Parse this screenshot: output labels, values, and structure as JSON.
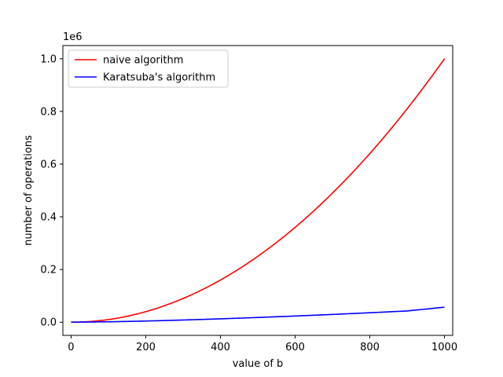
{
  "chart_data": {
    "type": "line",
    "xlabel": "value of b",
    "ylabel": "number of operations",
    "offset_text": "1e6",
    "xlim": [
      -22,
      1022
    ],
    "ylim": [
      -0.05,
      1.05
    ],
    "x_ticks": [
      0,
      200,
      400,
      600,
      800,
      1000
    ],
    "x_tick_labels": [
      "0",
      "200",
      "400",
      "600",
      "800",
      "1000"
    ],
    "y_ticks": [
      0.0,
      0.2,
      0.4,
      0.6,
      0.8,
      1.0
    ],
    "y_tick_labels": [
      "0.0",
      "0.2",
      "0.4",
      "0.6",
      "0.8",
      "1.0"
    ],
    "grid": false,
    "legend_position": "top-left",
    "x": [
      0,
      100,
      200,
      300,
      400,
      500,
      600,
      700,
      800,
      900,
      1000
    ],
    "series": [
      {
        "name": "naive algorithm",
        "color": "#ff0000",
        "values": [
          0.0,
          0.01,
          0.04,
          0.09,
          0.16,
          0.25,
          0.36,
          0.49,
          0.64,
          0.81,
          1.0
        ]
      },
      {
        "name": "Karatsuba's algorithm",
        "color": "#0000ff",
        "values": [
          0.0,
          0.00146,
          0.00439,
          0.00825,
          0.01278,
          0.01787,
          0.02345,
          0.02945,
          0.03585,
          0.04263,
          0.05699
        ]
      }
    ]
  }
}
